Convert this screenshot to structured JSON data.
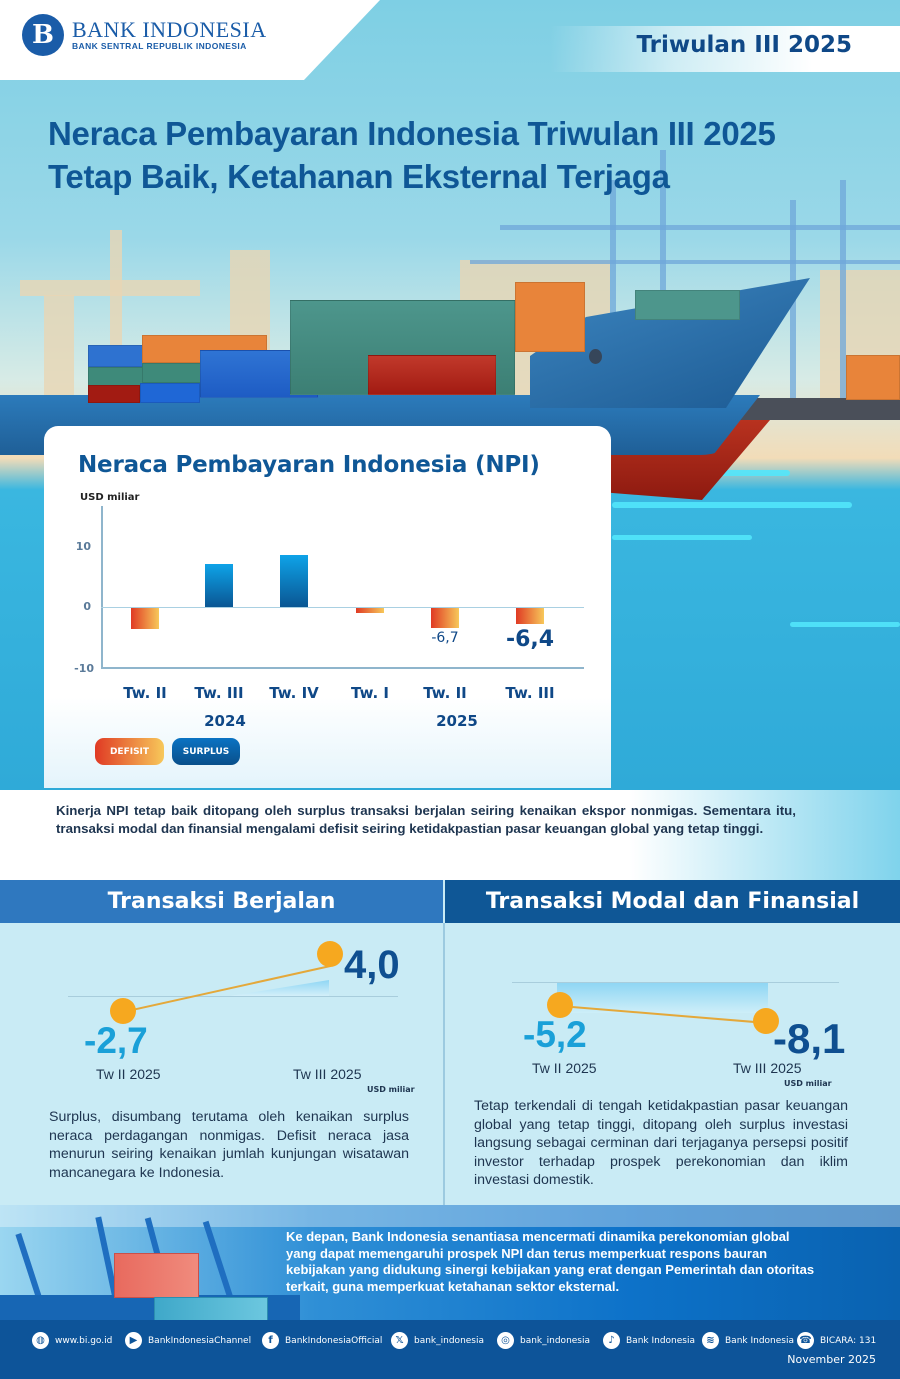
{
  "header": {
    "logo_mark": "B",
    "org_name": "BANK INDONESIA",
    "org_subtitle": "BANK SENTRAL REPUBLIK INDONESIA",
    "period": "Triwulan III 2025",
    "title_line1": "Neraca Pembayaran Indonesia Triwulan III 2025",
    "title_line2": "Tetap Baik, Ketahanan Eksternal Terjaga"
  },
  "chart_card": {
    "title": "Neraca Pembayaran Indonesia (NPI)",
    "unit": "USD miliar",
    "legend": {
      "deficit": "DEFISIT",
      "surplus": "SURPLUS"
    },
    "colors": {
      "deficit_from": "#e03a24",
      "deficit_to": "#f7c85a",
      "surplus_top": "#0ea3e8",
      "surplus_bottom": "#0a5693"
    }
  },
  "chart_data": {
    "type": "bar",
    "title": "Neraca Pembayaran Indonesia (NPI)",
    "ylabel": "USD miliar",
    "xlabel": "",
    "ylim": [
      -10,
      10
    ],
    "yticks": [
      10,
      0,
      -10
    ],
    "grid": false,
    "categories": [
      "Tw. II",
      "Tw. III",
      "Tw. IV",
      "Tw. I",
      "Tw. II",
      "Tw. III"
    ],
    "year_groups": [
      {
        "label": "2024",
        "categories": [
          "Tw. II",
          "Tw. III",
          "Tw. IV"
        ]
      },
      {
        "label": "2025",
        "categories": [
          "Tw. I",
          "Tw. II",
          "Tw. III"
        ]
      }
    ],
    "values": [
      -3.4,
      7.0,
      8.6,
      -0.8,
      -6.7,
      -6.4
    ],
    "bar_types": [
      "defisit",
      "surplus",
      "surplus",
      "defisit",
      "defisit",
      "defisit"
    ],
    "data_labels": [
      "",
      "",
      "",
      "",
      "-6,7",
      "-6,4"
    ],
    "legend": [
      "DEFISIT",
      "SURPLUS"
    ],
    "legend_position": "bottom-left"
  },
  "summary": {
    "text": "Kinerja NPI tetap baik ditopang oleh surplus transaksi berjalan seiring kenaikan ekspor nonmigas. Sementara itu, transaksi modal dan finansial mengalami defisit seiring ketidakpastian pasar keuangan global yang tetap tinggi."
  },
  "current_account": {
    "heading": "Transaksi Berjalan",
    "prev_value": "-2,7",
    "prev_period": "Tw II 2025",
    "curr_value": "4,0",
    "curr_period": "Tw III 2025",
    "unit": "USD miliar",
    "text": "Surplus, disumbang terutama oleh kenaikan surplus neraca perdagangan nonmigas. Defisit neraca jasa menurun seiring kenaikan jumlah kunjungan wisatawan mancanegara ke Indonesia."
  },
  "capital_account": {
    "heading": "Transaksi Modal dan Finansial",
    "prev_value": "-5,2",
    "prev_period": "Tw II 2025",
    "curr_value": "-8,1",
    "curr_period": "Tw III 2025",
    "unit": "USD miliar",
    "text": "Tetap terkendali di tengah ketidakpastian pasar keuangan global yang tetap tinggi, ditopang oleh surplus investasi langsung sebagai cerminan dari terjaganya persepsi positif investor terhadap prospek perekonomian dan iklim investasi domestik."
  },
  "outlook": {
    "text": "Ke depan, Bank Indonesia senantiasa mencermati dinamika perekonomian global yang dapat memengaruhi prospek NPI dan terus memperkuat respons bauran kebijakan yang didukung sinergi kebijakan yang erat dengan Pemerintah dan otoritas terkait, guna memperkuat ketahanan sektor eksternal."
  },
  "footer": {
    "socials": [
      {
        "icon": "globe-icon",
        "glyph": "◍",
        "label": "www.bi.go.id"
      },
      {
        "icon": "youtube-icon",
        "glyph": "▶",
        "label": "BankIndonesiaChannel"
      },
      {
        "icon": "facebook-icon",
        "glyph": "f",
        "label": "BankIndonesiaOfficial"
      },
      {
        "icon": "x-icon",
        "glyph": "𝕏",
        "label": "bank_indonesia"
      },
      {
        "icon": "instagram-icon",
        "glyph": "◎",
        "label": "bank_indonesia"
      },
      {
        "icon": "tiktok-icon",
        "glyph": "♪",
        "label": "Bank Indonesia"
      },
      {
        "icon": "spotify-icon",
        "glyph": "≋",
        "label": "Bank Indonesia"
      },
      {
        "icon": "bicara-icon",
        "glyph": "☎",
        "label": "BICARA: 131"
      }
    ],
    "date": "November 2025"
  }
}
